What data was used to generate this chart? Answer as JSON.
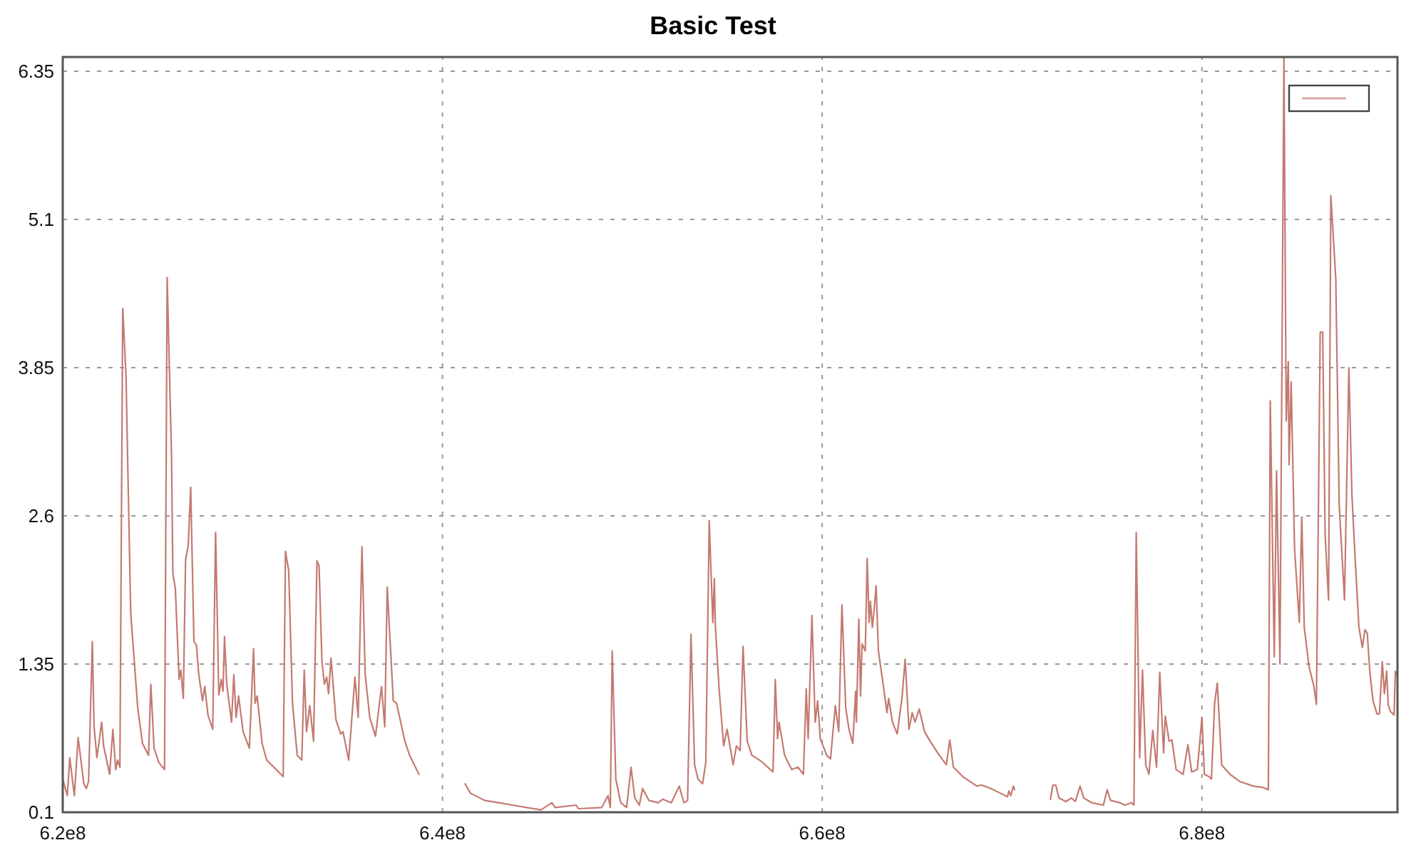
{
  "chart_data": {
    "type": "line",
    "title": "Basic Test",
    "x": [
      620000000.0,
      620240000.0,
      620370000.0,
      620610000.0,
      620810000.0,
      621110000.0,
      621240000.0,
      621360000.0,
      621560000.0,
      621650000.0,
      621800000.0,
      622050000.0,
      622150000.0,
      622470000.0,
      622640000.0,
      622790000.0,
      622890000.0,
      623010000.0,
      623160000.0,
      623330000.0,
      623580000.0,
      623950000.0,
      624200000.0,
      624520000.0,
      624640000.0,
      624810000.0,
      625060000.0,
      625360000.0,
      625500000.0,
      625730000.0,
      625800000.0,
      625930000.0,
      626130000.0,
      626220000.0,
      626350000.0,
      626470000.0,
      626610000.0,
      626740000.0,
      626910000.0,
      627040000.0,
      627160000.0,
      627360000.0,
      627480000.0,
      627650000.0,
      627900000.0,
      628050000.0,
      628220000.0,
      628350000.0,
      628440000.0,
      628520000.0,
      628640000.0,
      628890000.0,
      629010000.0,
      629130000.0,
      629260000.0,
      629500000.0,
      629830000.0,
      630050000.0,
      630130000.0,
      630240000.0,
      630500000.0,
      630740000.0,
      631240000.0,
      631610000.0,
      631730000.0,
      631900000.0,
      632100000.0,
      632350000.0,
      632590000.0,
      632720000.0,
      632840000.0,
      633010000.0,
      633210000.0,
      633390000.0,
      633500000.0,
      633650000.0,
      633780000.0,
      633900000.0,
      634000000.0,
      634130000.0,
      634390000.0,
      634640000.0,
      634760000.0,
      635060000.0,
      635390000.0,
      635560000.0,
      635760000.0,
      635930000.0,
      636170000.0,
      636470000.0,
      636790000.0,
      636960000.0,
      637090000.0,
      637410000.0,
      637580000.0,
      638020000.0,
      638270000.0,
      638760000.0,
      640000000.0,
      641190000.0,
      641480000.0,
      642220000.0,
      642960000.0,
      643700000.0,
      644440000.0,
      645190000.0,
      645760000.0,
      645930000.0,
      647040000.0,
      647160000.0,
      648390000.0,
      648720000.0,
      648840000.0,
      648940000.0,
      649130000.0,
      649390000.0,
      649700000.0,
      649930000.0,
      650130000.0,
      650370000.0,
      650540000.0,
      650870000.0,
      651360000.0,
      651610000.0,
      652050000.0,
      652470000.0,
      652720000.0,
      652910000.0,
      653090000.0,
      653280000.0,
      653460000.0,
      653700000.0,
      653870000.0,
      654050000.0,
      654240000.0,
      654320000.0,
      654370000.0,
      654570000.0,
      654810000.0,
      654990000.0,
      655310000.0,
      655480000.0,
      655680000.0,
      655830000.0,
      656050000.0,
      656300000.0,
      656790000.0,
      657410000.0,
      657530000.0,
      657650000.0,
      657730000.0,
      658020000.0,
      658390000.0,
      658720000.0,
      659010000.0,
      659160000.0,
      659260000.0,
      659460000.0,
      659630000.0,
      659760000.0,
      659900000.0,
      660240000.0,
      660440000.0,
      660690000.0,
      660870000.0,
      661040000.0,
      661240000.0,
      661410000.0,
      661610000.0,
      661760000.0,
      661800000.0,
      661930000.0,
      662020000.0,
      662100000.0,
      662270000.0,
      662370000.0,
      662470000.0,
      662540000.0,
      662640000.0,
      662720000.0,
      662840000.0,
      662960000.0,
      663210000.0,
      663410000.0,
      663500000.0,
      663700000.0,
      663950000.0,
      664200000.0,
      664370000.0,
      664570000.0,
      664740000.0,
      664890000.0,
      665110000.0,
      665390000.0,
      665680000.0,
      666170000.0,
      666540000.0,
      666720000.0,
      666910000.0,
      667410000.0,
      668150000.0,
      668390000.0,
      668890000.0,
      669390000.0,
      669760000.0,
      669830000.0,
      669930000.0,
      670070000.0,
      670130000.0,
      671000000.0,
      672020000.0,
      672150000.0,
      672300000.0,
      672470000.0,
      672840000.0,
      673130000.0,
      673330000.0,
      673580000.0,
      673780000.0,
      674200000.0,
      674810000.0,
      675010000.0,
      675190000.0,
      675680000.0,
      675930000.0,
      676300000.0,
      676420000.0,
      676540000.0,
      676720000.0,
      676870000.0,
      677040000.0,
      677210000.0,
      677410000.0,
      677610000.0,
      677780000.0,
      677980000.0,
      678070000.0,
      678270000.0,
      678420000.0,
      678640000.0,
      679010000.0,
      679260000.0,
      679460000.0,
      679760000.0,
      680000000.0,
      680130000.0,
      680370000.0,
      680500000.0,
      680670000.0,
      680810000.0,
      681040000.0,
      681480000.0,
      681980000.0,
      682720000.0,
      683210000.0,
      683500000.0,
      683600000.0,
      683810000.0,
      683930000.0,
      684110000.0,
      684320000.0,
      684440000.0,
      684550000.0,
      684590000.0,
      684700000.0,
      684880000.0,
      685130000.0,
      685260000.0,
      685390000.0,
      685640000.0,
      685900000.0,
      686030000.0,
      686230000.0,
      686360000.0,
      686490000.0,
      686670000.0,
      686790000.0,
      687050000.0,
      687230000.0,
      687300000.0,
      687510000.0,
      687740000.0,
      687900000.0,
      688070000.0,
      688270000.0,
      688450000.0,
      688590000.0,
      688710000.0,
      688840000.0,
      689010000.0,
      689220000.0,
      689350000.0,
      689500000.0,
      689610000.0,
      689730000.0,
      689810000.0,
      689930000.0,
      690120000.0,
      690190000.0,
      690300000.0
    ],
    "series": [
      {
        "color": "#c47a70",
        "values": [
          0.38,
          0.24,
          0.56,
          0.24,
          0.73,
          0.34,
          0.3,
          0.36,
          1.54,
          0.82,
          0.56,
          0.86,
          0.66,
          0.42,
          0.8,
          0.46,
          0.54,
          0.48,
          4.35,
          3.79,
          1.78,
          0.98,
          0.68,
          0.58,
          1.18,
          0.64,
          0.52,
          0.46,
          4.61,
          3.1,
          2.11,
          1.99,
          1.22,
          1.3,
          1.06,
          2.23,
          2.35,
          2.84,
          1.54,
          1.51,
          1.27,
          1.04,
          1.16,
          0.92,
          0.8,
          2.46,
          1.09,
          1.22,
          1.12,
          1.58,
          1.18,
          0.86,
          1.26,
          0.9,
          1.08,
          0.78,
          0.64,
          1.48,
          1.02,
          1.08,
          0.68,
          0.54,
          0.46,
          0.4,
          2.3,
          2.14,
          1.02,
          0.58,
          0.54,
          1.3,
          0.78,
          1.0,
          0.7,
          2.22,
          2.18,
          1.38,
          1.18,
          1.24,
          1.1,
          1.4,
          0.88,
          0.76,
          0.78,
          0.54,
          1.24,
          0.9,
          2.34,
          1.26,
          0.9,
          0.74,
          1.16,
          0.82,
          2.0,
          1.04,
          1.02,
          0.7,
          0.58,
          0.42,
          null,
          0.34,
          0.26,
          0.2,
          0.18,
          0.16,
          0.14,
          0.12,
          0.18,
          0.14,
          0.16,
          0.13,
          0.14,
          0.24,
          0.14,
          1.46,
          0.38,
          0.18,
          0.14,
          0.48,
          0.22,
          0.16,
          0.3,
          0.2,
          0.18,
          0.21,
          0.18,
          0.32,
          0.18,
          0.2,
          1.6,
          0.5,
          0.38,
          0.34,
          0.52,
          2.56,
          1.7,
          2.07,
          1.68,
          1.14,
          0.66,
          0.8,
          0.5,
          0.66,
          0.62,
          1.5,
          0.7,
          0.58,
          0.53,
          0.44,
          1.22,
          0.72,
          0.86,
          0.58,
          0.46,
          0.48,
          0.42,
          1.14,
          0.72,
          1.76,
          0.86,
          1.04,
          0.72,
          0.58,
          0.55,
          1.0,
          0.78,
          1.85,
          0.98,
          0.8,
          0.68,
          1.12,
          0.86,
          1.73,
          1.08,
          1.52,
          1.46,
          2.24,
          1.7,
          1.88,
          1.66,
          1.78,
          2.01,
          1.46,
          1.18,
          0.94,
          1.06,
          0.86,
          0.76,
          1.06,
          1.39,
          0.8,
          0.94,
          0.86,
          0.97,
          0.78,
          0.7,
          0.58,
          0.5,
          0.71,
          0.48,
          0.4,
          0.32,
          0.33,
          0.3,
          0.26,
          0.23,
          0.28,
          0.24,
          0.32,
          0.29,
          null,
          0.21,
          0.33,
          0.33,
          0.22,
          0.19,
          0.22,
          0.19,
          0.32,
          0.22,
          0.18,
          0.16,
          0.29,
          0.2,
          0.18,
          0.16,
          0.18,
          0.16,
          2.46,
          0.56,
          1.3,
          0.5,
          0.42,
          0.79,
          0.48,
          1.28,
          0.6,
          0.91,
          0.7,
          0.71,
          0.46,
          0.42,
          0.67,
          0.44,
          0.46,
          0.9,
          0.42,
          0.4,
          0.38,
          1.02,
          1.19,
          0.5,
          0.42,
          0.36,
          0.32,
          0.31,
          0.29,
          3.57,
          1.41,
          2.98,
          1.35,
          6.47,
          3.4,
          3.9,
          3.03,
          3.73,
          2.32,
          1.7,
          2.59,
          1.66,
          1.33,
          1.16,
          1.01,
          4.15,
          4.15,
          2.44,
          1.89,
          5.3,
          4.6,
          2.7,
          2.49,
          1.89,
          3.85,
          2.78,
          2.24,
          1.66,
          1.49,
          1.64,
          1.61,
          1.29,
          1.04,
          0.93,
          0.93,
          1.37,
          1.1,
          1.29,
          1.01,
          0.95,
          0.92,
          1.29,
          1.24
        ]
      }
    ],
    "xlim": [
      620000000.0,
      690300000.0
    ],
    "ylim": [
      0.1,
      6.47
    ],
    "xticks": [
      {
        "value": 620000000.0,
        "label": "6.2e8"
      },
      {
        "value": 640000000.0,
        "label": "6.4e8"
      },
      {
        "value": 660000000.0,
        "label": "6.6e8"
      },
      {
        "value": 680000000.0,
        "label": "6.8e8"
      }
    ],
    "yticks": [
      0.1,
      1.35,
      2.6,
      3.85,
      5.1,
      6.35
    ],
    "grid": true
  }
}
